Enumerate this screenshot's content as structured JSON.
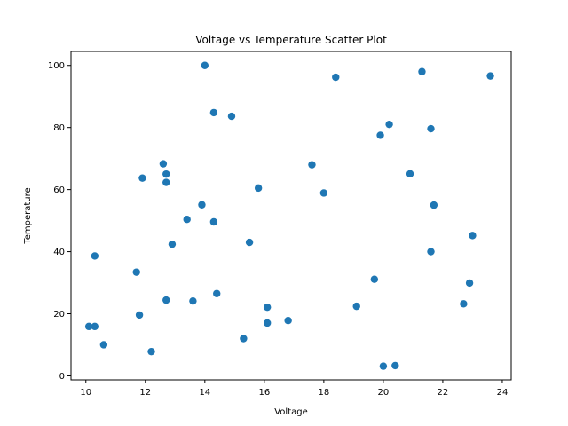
{
  "chart_data": {
    "type": "scatter",
    "title": "Voltage vs Temperature Scatter Plot",
    "xlabel": "Voltage",
    "ylabel": "Temperature",
    "xlim": [
      9.5,
      24.3
    ],
    "ylim": [
      -1.3,
      104.5
    ],
    "xticks": [
      10,
      12,
      14,
      16,
      18,
      20,
      22,
      24
    ],
    "yticks": [
      0,
      20,
      40,
      60,
      80,
      100
    ],
    "grid": false,
    "legend": "none",
    "marker_color": "#1f77b4",
    "points": [
      {
        "x": 10.1,
        "y": 15.9
      },
      {
        "x": 10.3,
        "y": 15.9
      },
      {
        "x": 10.3,
        "y": 38.6
      },
      {
        "x": 10.6,
        "y": 10.0
      },
      {
        "x": 11.7,
        "y": 33.4
      },
      {
        "x": 11.8,
        "y": 19.6
      },
      {
        "x": 11.9,
        "y": 63.7
      },
      {
        "x": 12.2,
        "y": 7.8
      },
      {
        "x": 12.6,
        "y": 68.3
      },
      {
        "x": 12.7,
        "y": 65.0
      },
      {
        "x": 12.7,
        "y": 62.3
      },
      {
        "x": 12.7,
        "y": 24.4
      },
      {
        "x": 12.9,
        "y": 42.4
      },
      {
        "x": 13.4,
        "y": 50.4
      },
      {
        "x": 13.6,
        "y": 24.1
      },
      {
        "x": 13.9,
        "y": 55.1
      },
      {
        "x": 14.0,
        "y": 100.0
      },
      {
        "x": 14.3,
        "y": 84.8
      },
      {
        "x": 14.3,
        "y": 49.6
      },
      {
        "x": 14.4,
        "y": 26.5
      },
      {
        "x": 14.9,
        "y": 83.6
      },
      {
        "x": 15.3,
        "y": 12.0
      },
      {
        "x": 15.5,
        "y": 43.0
      },
      {
        "x": 15.8,
        "y": 60.5
      },
      {
        "x": 16.1,
        "y": 22.1
      },
      {
        "x": 16.1,
        "y": 17.0
      },
      {
        "x": 16.8,
        "y": 17.8
      },
      {
        "x": 17.6,
        "y": 68.0
      },
      {
        "x": 18.0,
        "y": 58.9
      },
      {
        "x": 18.4,
        "y": 96.2
      },
      {
        "x": 19.1,
        "y": 22.4
      },
      {
        "x": 19.7,
        "y": 31.1
      },
      {
        "x": 19.9,
        "y": 77.5
      },
      {
        "x": 20.0,
        "y": 3.1
      },
      {
        "x": 20.2,
        "y": 81.0
      },
      {
        "x": 20.4,
        "y": 3.3
      },
      {
        "x": 20.9,
        "y": 65.1
      },
      {
        "x": 21.3,
        "y": 98.0
      },
      {
        "x": 21.6,
        "y": 79.6
      },
      {
        "x": 21.6,
        "y": 40.0
      },
      {
        "x": 21.7,
        "y": 55.0
      },
      {
        "x": 22.7,
        "y": 23.2
      },
      {
        "x": 22.9,
        "y": 29.9
      },
      {
        "x": 23.0,
        "y": 45.2
      },
      {
        "x": 23.6,
        "y": 96.6
      }
    ]
  }
}
